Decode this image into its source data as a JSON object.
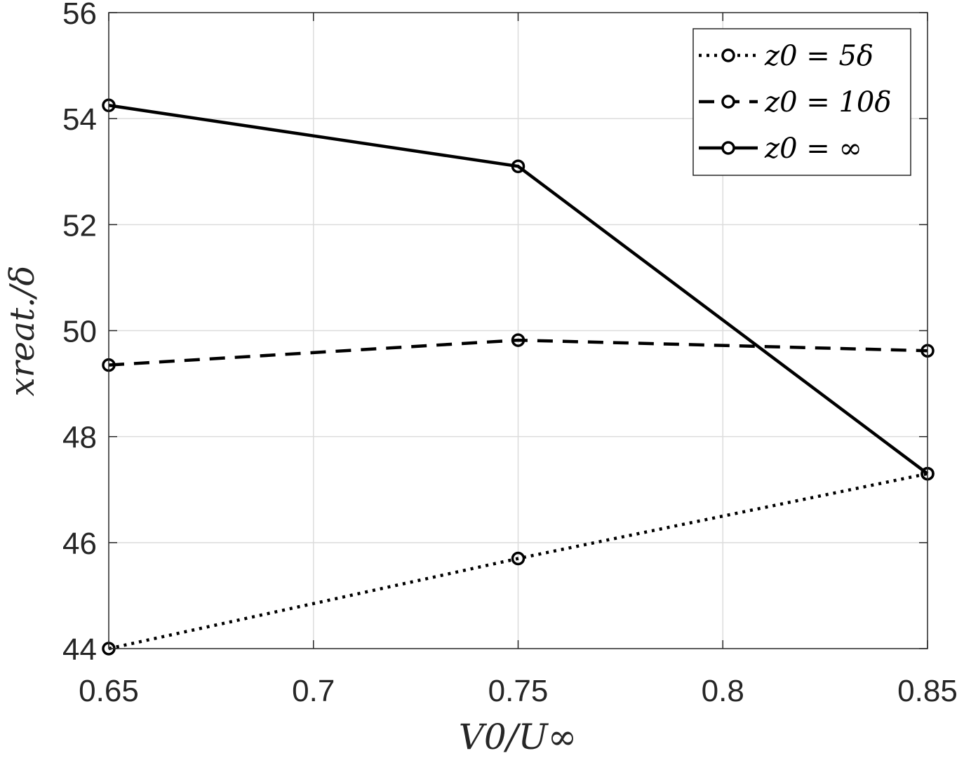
{
  "chart_data": {
    "type": "line",
    "xlabel": "V0/U∞",
    "ylabel": "xreat./δ",
    "xlim": [
      0.65,
      0.85
    ],
    "ylim": [
      44,
      56
    ],
    "xticks": [
      0.65,
      0.7,
      0.75,
      0.8,
      0.85
    ],
    "xtick_labels": [
      "0.65",
      "0.7",
      "0.75",
      "0.8",
      "0.85"
    ],
    "yticks": [
      44,
      46,
      48,
      50,
      52,
      54,
      56
    ],
    "ytick_labels": [
      "44",
      "46",
      "48",
      "50",
      "52",
      "54",
      "56"
    ],
    "grid": true,
    "legend_position": "top-right",
    "x": [
      0.65,
      0.75,
      0.85
    ],
    "series": [
      {
        "name": "z0 = 5δ",
        "style": "dotted",
        "marker": "circle",
        "values": [
          44.0,
          45.7,
          47.3
        ]
      },
      {
        "name": "z0 = 10δ",
        "style": "dashed",
        "marker": "circle",
        "values": [
          49.35,
          49.82,
          49.62
        ]
      },
      {
        "name": "z0 = ∞",
        "style": "solid",
        "marker": "circle",
        "values": [
          54.25,
          53.1,
          47.3
        ]
      }
    ],
    "colors": {
      "line": "#000000",
      "axis": "#262626",
      "grid": "#dcdcdc"
    }
  }
}
